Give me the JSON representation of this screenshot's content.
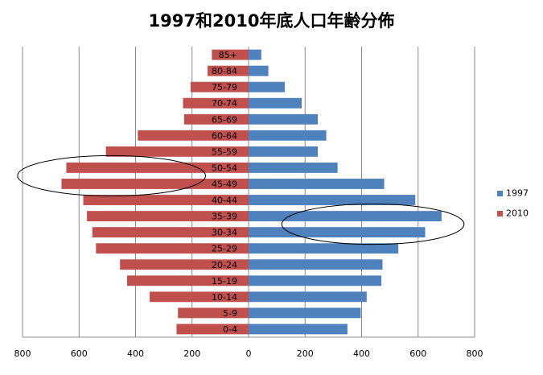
{
  "chart_data": {
    "type": "bar",
    "title": "1997和2010年底人口年齢分佈",
    "categories": [
      "0-4",
      "5-9",
      "10-14",
      "15-19",
      "20-24",
      "25-29",
      "30-34",
      "35-39",
      "40-44",
      "45-49",
      "50-54",
      "55-59",
      "60-64",
      "65-69",
      "70-74",
      "75-79",
      "80-84",
      "85+"
    ],
    "series": [
      {
        "name": "1997",
        "color": "#4f81bd",
        "values": [
          350,
          397,
          418,
          470,
          474,
          530,
          625,
          683,
          590,
          480,
          315,
          245,
          275,
          245,
          188,
          128,
          70,
          45
        ]
      },
      {
        "name": "2010",
        "color": "#c0504d",
        "values": [
          255,
          250,
          350,
          430,
          455,
          540,
          553,
          572,
          585,
          662,
          645,
          505,
          392,
          228,
          232,
          205,
          145,
          130
        ]
      }
    ],
    "xlim": [
      -800,
      800
    ],
    "x_ticks": [
      -800,
      -600,
      -400,
      -200,
      0,
      200,
      400,
      600,
      800
    ],
    "x_tick_labels": [
      "800",
      "600",
      "400",
      "200",
      "0",
      "200",
      "400",
      "600",
      "800"
    ],
    "xlabel": "",
    "ylabel": "",
    "grid": "vertical",
    "legend_position": "right",
    "annotations": [
      {
        "type": "ellipse",
        "categories": [
          "45-49",
          "50-54"
        ],
        "side": "2010"
      },
      {
        "type": "ellipse",
        "categories": [
          "30-34",
          "35-39"
        ],
        "side": "1997"
      }
    ]
  }
}
